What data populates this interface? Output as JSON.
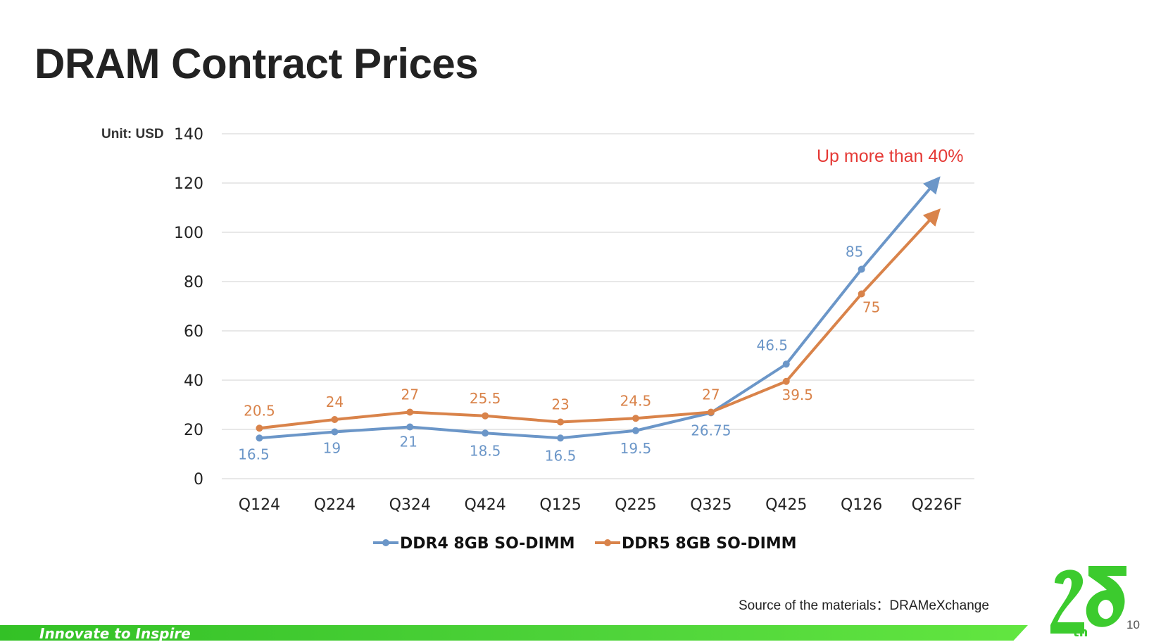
{
  "slide": {
    "title": "DRAM Contract Prices",
    "unit_label": "Unit: USD",
    "annotation": "Up more than 40%",
    "source": "Source of the materials：DRAMeXchange",
    "footer_tagline": "Innovate to Inspire",
    "page_number": "10",
    "logo_text": "25th",
    "colors": {
      "accent_green": "#3ccb2e",
      "annotation_red": "#e53935"
    }
  },
  "chart_data": {
    "type": "line",
    "categories": [
      "Q124",
      "Q224",
      "Q324",
      "Q424",
      "Q125",
      "Q225",
      "Q325",
      "Q425",
      "Q126",
      "Q226F"
    ],
    "ylim": [
      0,
      140
    ],
    "yticks": [
      0,
      20,
      40,
      60,
      80,
      100,
      120,
      140
    ],
    "grid": true,
    "legend": "bottom",
    "series": [
      {
        "name": "DDR4 8GB SO-DIMM",
        "color": "#6b96c8",
        "values": [
          16.5,
          19,
          21,
          18.5,
          16.5,
          19.5,
          26.75,
          46.5,
          85,
          121
        ],
        "labels": [
          "16.5",
          "19",
          "21",
          "18.5",
          "16.5",
          "19.5",
          "26.75",
          "46.5",
          "85",
          ""
        ]
      },
      {
        "name": "DDR5 8GB SO-DIMM",
        "color": "#d9834a",
        "values": [
          20.5,
          24,
          27,
          25.5,
          23,
          24.5,
          27,
          39.5,
          75,
          108
        ],
        "labels": [
          "20.5",
          "24",
          "27",
          "25.5",
          "23",
          "24.5",
          "27",
          "39.5",
          "75",
          ""
        ]
      }
    ]
  }
}
